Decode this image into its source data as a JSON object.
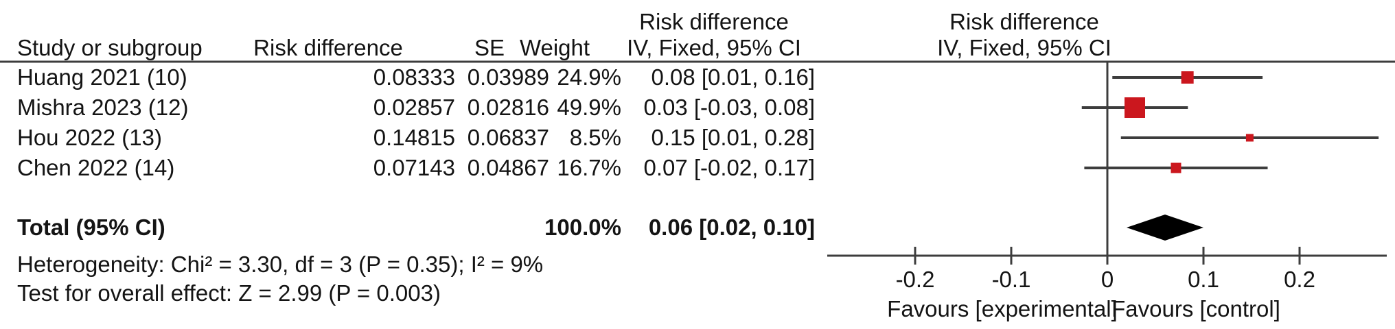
{
  "chart_data": {
    "type": "forest",
    "title": "",
    "headers": {
      "study": "Study or subgroup",
      "risk_difference": "Risk difference",
      "se": "SE",
      "weight": "Weight",
      "ci_col_line1": "Risk difference",
      "ci_col_line2": "IV, Fixed, 95% CI",
      "plot_line1": "Risk difference",
      "plot_line2": "IV, Fixed, 95% CI"
    },
    "studies": [
      {
        "label": "Huang 2021 (10)",
        "risk_difference": "0.08333",
        "se": "0.03989",
        "weight": "24.9%",
        "ci_text": "0.08 [0.01, 0.16]",
        "est": 0.08333,
        "ci_lo": 0.0052,
        "ci_hi": 0.1615,
        "weight_pct": 24.9
      },
      {
        "label": "Mishra 2023 (12)",
        "risk_difference": "0.02857",
        "se": "0.02816",
        "weight": "49.9%",
        "ci_text": "0.03 [-0.03, 0.08]",
        "est": 0.02857,
        "ci_lo": -0.0266,
        "ci_hi": 0.0838,
        "weight_pct": 49.9
      },
      {
        "label": "Hou 2022 (13)",
        "risk_difference": "0.14815",
        "se": "0.06837",
        "weight": "8.5%",
        "ci_text": "0.15 [0.01, 0.28]",
        "est": 0.14815,
        "ci_lo": 0.0141,
        "ci_hi": 0.2822,
        "weight_pct": 8.5
      },
      {
        "label": "Chen 2022 (14)",
        "risk_difference": "0.07143",
        "se": "0.04867",
        "weight": "16.7%",
        "ci_text": "0.07 [-0.02, 0.17]",
        "est": 0.07143,
        "ci_lo": -0.024,
        "ci_hi": 0.1668,
        "weight_pct": 16.7
      }
    ],
    "total": {
      "label": "Total (95% CI)",
      "weight": "100.0%",
      "ci_text": "0.06 [0.02, 0.10]",
      "est": 0.06,
      "ci_lo": 0.02,
      "ci_hi": 0.1
    },
    "footnotes": {
      "heterogeneity": "Heterogeneity: Chi² = 3.30, df = 3 (P = 0.35); I² = 9%",
      "overall_effect": "Test for overall effect: Z = 2.99 (P = 0.003)"
    },
    "axis": {
      "xlim": [
        -0.291,
        0.291
      ],
      "ticks": [
        -0.2,
        -0.1,
        0,
        0.1,
        0.2
      ],
      "tick_labels": [
        "-0.2",
        "-0.1",
        "0",
        "0.1",
        "0.2"
      ],
      "favours_left": "Favours [experimental]",
      "favours_right": "Favours [control]"
    },
    "colors": {
      "marker": "#cb171e",
      "diamond": "#000000",
      "line": "#3d3d3d",
      "text": "#141414"
    }
  }
}
